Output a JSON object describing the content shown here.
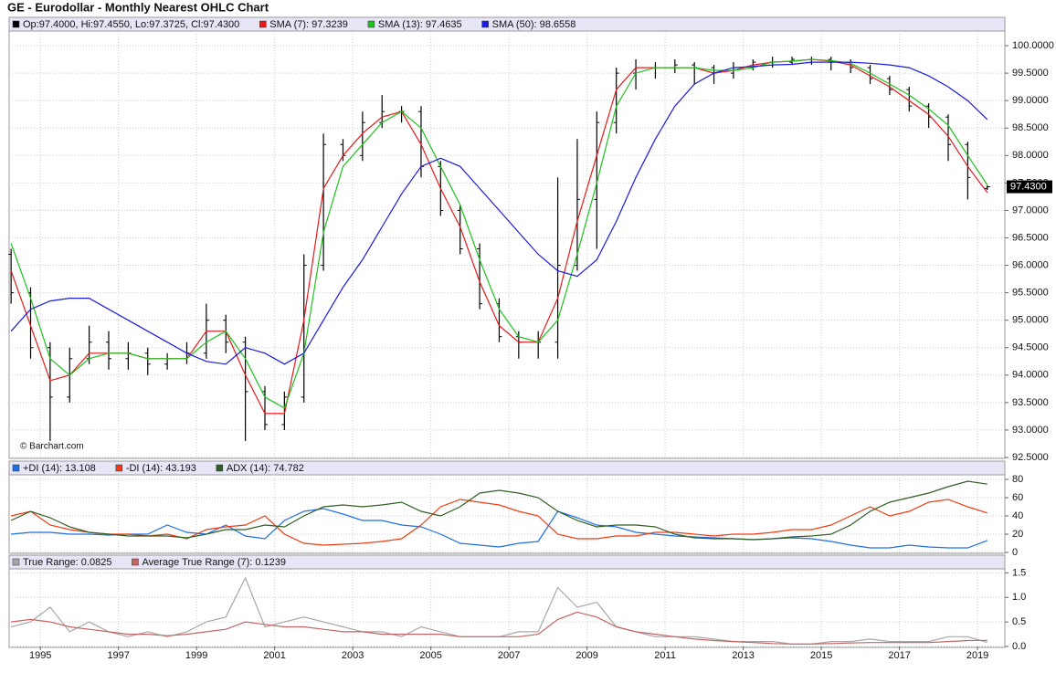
{
  "chart_data": [
    {
      "type": "ohlc",
      "title": "GE - Eurodollar - Monthly Nearest OHLC Chart",
      "credit": "© Barchart.com",
      "name": "Op:97.4000, Hi:97.4550, Lo:97.3725, Cl:97.4300",
      "color": "#000000",
      "last_label": "97.4300",
      "x": [
        1994.25,
        1994.75,
        1995.25,
        1995.75,
        1996.25,
        1996.75,
        1997.25,
        1997.75,
        1998.25,
        1998.75,
        1999.25,
        1999.75,
        2000.25,
        2000.75,
        2001.25,
        2001.75,
        2002.25,
        2002.75,
        2003.25,
        2003.75,
        2004.25,
        2004.75,
        2005.25,
        2005.75,
        2006.25,
        2006.75,
        2007.25,
        2007.75,
        2008.25,
        2008.75,
        2009.25,
        2009.75,
        2010.25,
        2010.75,
        2011.25,
        2011.75,
        2012.25,
        2012.75,
        2013.25,
        2013.75,
        2014.25,
        2014.75,
        2015.25,
        2015.75,
        2016.25,
        2016.75,
        2017.25,
        2017.75,
        2018.25,
        2018.75,
        2019.25
      ],
      "open": [
        96.2,
        95.5,
        94.5,
        93.6,
        94.3,
        94.6,
        94.3,
        94.4,
        94.2,
        94.3,
        94.4,
        95.0,
        94.6,
        93.7,
        93.1,
        93.6,
        96.0,
        98.2,
        98.0,
        98.6,
        98.8,
        98.8,
        97.8,
        97.0,
        96.3,
        95.3,
        94.7,
        94.6,
        94.6,
        96.0,
        97.2,
        98.6,
        99.5,
        99.6,
        99.6,
        99.65,
        99.6,
        99.5,
        99.6,
        99.7,
        99.7,
        99.75,
        99.75,
        99.7,
        99.6,
        99.4,
        99.2,
        98.9,
        98.7,
        98.2,
        97.4
      ],
      "high": [
        96.3,
        95.6,
        94.6,
        94.5,
        94.9,
        94.8,
        94.6,
        94.5,
        94.4,
        94.6,
        95.3,
        95.1,
        94.7,
        93.8,
        93.7,
        96.2,
        98.4,
        98.3,
        98.8,
        99.1,
        98.9,
        98.9,
        97.9,
        97.1,
        96.4,
        95.4,
        94.8,
        94.8,
        97.6,
        98.3,
        98.8,
        99.6,
        99.75,
        99.7,
        99.75,
        99.7,
        99.65,
        99.7,
        99.75,
        99.8,
        99.8,
        99.8,
        99.8,
        99.75,
        99.65,
        99.45,
        99.25,
        98.95,
        98.75,
        98.25,
        97.455
      ],
      "low": [
        95.3,
        94.3,
        92.8,
        93.5,
        94.2,
        94.1,
        94.1,
        94.0,
        94.1,
        94.2,
        94.3,
        94.4,
        92.8,
        93.0,
        93.0,
        93.5,
        95.9,
        97.9,
        97.9,
        98.5,
        98.6,
        97.6,
        96.9,
        96.2,
        95.2,
        94.6,
        94.3,
        94.3,
        94.3,
        95.9,
        96.3,
        98.4,
        99.2,
        99.4,
        99.5,
        99.3,
        99.3,
        99.4,
        99.55,
        99.6,
        99.65,
        99.65,
        99.55,
        99.5,
        99.3,
        99.1,
        98.8,
        98.5,
        97.9,
        97.2,
        97.3725
      ],
      "close": [
        95.5,
        94.5,
        93.6,
        94.3,
        94.6,
        94.3,
        94.4,
        94.2,
        94.3,
        94.4,
        95.0,
        94.6,
        93.7,
        93.1,
        93.6,
        96.0,
        98.2,
        98.0,
        98.6,
        98.8,
        98.8,
        97.8,
        97.0,
        96.3,
        95.3,
        94.7,
        94.6,
        94.6,
        96.0,
        97.2,
        98.6,
        99.5,
        99.6,
        99.6,
        99.65,
        99.6,
        99.5,
        99.6,
        99.7,
        99.7,
        99.75,
        99.75,
        99.7,
        99.6,
        99.4,
        99.2,
        98.9,
        98.7,
        98.2,
        97.6,
        97.43
      ],
      "series": [
        {
          "name": "SMA (7): 97.3239",
          "color": "#e8191b",
          "values": [
            95.9,
            94.9,
            93.9,
            94.0,
            94.4,
            94.4,
            94.4,
            94.3,
            94.3,
            94.3,
            94.8,
            94.8,
            94.0,
            93.3,
            93.3,
            95.0,
            97.4,
            98.0,
            98.4,
            98.7,
            98.8,
            98.2,
            97.4,
            96.7,
            95.7,
            94.9,
            94.6,
            94.6,
            95.4,
            96.8,
            98.0,
            99.2,
            99.6,
            99.6,
            99.6,
            99.6,
            99.5,
            99.55,
            99.65,
            99.7,
            99.72,
            99.75,
            99.72,
            99.65,
            99.45,
            99.25,
            99.0,
            98.75,
            98.35,
            97.8,
            97.3239
          ]
        },
        {
          "name": "SMA (13): 97.4635",
          "color": "#1cc31c",
          "values": [
            96.4,
            95.4,
            94.3,
            94.0,
            94.3,
            94.4,
            94.4,
            94.3,
            94.3,
            94.3,
            94.6,
            94.8,
            94.3,
            93.6,
            93.4,
            94.4,
            96.6,
            97.8,
            98.2,
            98.6,
            98.8,
            98.5,
            97.8,
            97.1,
            96.1,
            95.2,
            94.7,
            94.6,
            95.0,
            96.2,
            97.5,
            98.9,
            99.5,
            99.6,
            99.6,
            99.6,
            99.55,
            99.55,
            99.6,
            99.7,
            99.72,
            99.75,
            99.73,
            99.68,
            99.5,
            99.3,
            99.1,
            98.85,
            98.55,
            98.0,
            97.4635
          ]
        },
        {
          "name": "SMA (50): 98.6558",
          "color": "#1a1ae0",
          "values": [
            94.8,
            95.2,
            95.35,
            95.4,
            95.4,
            95.2,
            95.0,
            94.8,
            94.6,
            94.4,
            94.25,
            94.2,
            94.5,
            94.4,
            94.2,
            94.4,
            95.0,
            95.6,
            96.1,
            96.7,
            97.3,
            97.8,
            97.95,
            97.8,
            97.4,
            97.0,
            96.6,
            96.2,
            95.9,
            95.8,
            96.1,
            96.8,
            97.6,
            98.3,
            98.9,
            99.3,
            99.5,
            99.6,
            99.62,
            99.65,
            99.66,
            99.7,
            99.7,
            99.7,
            99.68,
            99.65,
            99.6,
            99.45,
            99.25,
            99.0,
            98.6558
          ]
        }
      ],
      "xlim": [
        1994.2,
        2019.7
      ],
      "ylim": [
        92.5,
        100.25
      ],
      "yticks": [
        {
          "value": 92.5,
          "label": "92.5000"
        },
        {
          "value": 93,
          "label": "93.0000"
        },
        {
          "value": 93.5,
          "label": "93.5000"
        },
        {
          "value": 94,
          "label": "94.0000"
        },
        {
          "value": 94.5,
          "label": "94.5000"
        },
        {
          "value": 95,
          "label": "95.0000"
        },
        {
          "value": 95.5,
          "label": "95.5000"
        },
        {
          "value": 96,
          "label": "96.0000"
        },
        {
          "value": 96.5,
          "label": "96.5000"
        },
        {
          "value": 97,
          "label": "97.0000"
        },
        {
          "value": 97.5,
          "label": "97.5000"
        },
        {
          "value": 98,
          "label": "98.0000"
        },
        {
          "value": 98.5,
          "label": "98.5000"
        },
        {
          "value": 99,
          "label": "99.0000"
        },
        {
          "value": 99.5,
          "label": "99.5000"
        },
        {
          "value": 100,
          "label": "100.0000"
        }
      ],
      "grid": true
    },
    {
      "type": "line",
      "x": [
        1994.25,
        1994.75,
        1995.25,
        1995.75,
        1996.25,
        1996.75,
        1997.25,
        1997.75,
        1998.25,
        1998.75,
        1999.25,
        1999.75,
        2000.25,
        2000.75,
        2001.25,
        2001.75,
        2002.25,
        2002.75,
        2003.25,
        2003.75,
        2004.25,
        2004.75,
        2005.25,
        2005.75,
        2006.25,
        2006.75,
        2007.25,
        2007.75,
        2008.25,
        2008.75,
        2009.25,
        2009.75,
        2010.25,
        2010.75,
        2011.25,
        2011.75,
        2012.25,
        2012.75,
        2013.25,
        2013.75,
        2014.25,
        2014.75,
        2015.25,
        2015.75,
        2016.25,
        2016.75,
        2017.25,
        2017.75,
        2018.25,
        2018.75,
        2019.25
      ],
      "series": [
        {
          "name": "+DI (14): 13.108",
          "color": "#1f6fe6",
          "values": [
            20,
            22,
            22,
            20,
            20,
            19,
            20,
            20,
            30,
            22,
            20,
            30,
            18,
            15,
            35,
            45,
            48,
            42,
            35,
            35,
            30,
            28,
            20,
            10,
            8,
            6,
            10,
            12,
            45,
            38,
            30,
            28,
            22,
            20,
            18,
            17,
            16,
            15,
            14,
            15,
            16,
            15,
            12,
            8,
            5,
            5,
            8,
            6,
            5,
            5,
            13.108
          ]
        },
        {
          "name": "-DI (14): 43.193",
          "color": "#f03c14",
          "values": [
            40,
            45,
            30,
            25,
            22,
            20,
            20,
            18,
            20,
            15,
            25,
            28,
            30,
            40,
            20,
            10,
            8,
            9,
            10,
            12,
            15,
            30,
            50,
            58,
            55,
            52,
            45,
            40,
            20,
            15,
            15,
            18,
            18,
            22,
            22,
            20,
            18,
            20,
            20,
            22,
            25,
            25,
            30,
            40,
            50,
            40,
            45,
            55,
            58,
            50,
            43.193
          ]
        },
        {
          "name": "ADX (14): 74.782",
          "color": "#2f5f23",
          "values": [
            35,
            45,
            38,
            28,
            22,
            20,
            18,
            18,
            18,
            16,
            20,
            25,
            25,
            30,
            28,
            40,
            50,
            52,
            50,
            52,
            55,
            45,
            40,
            50,
            65,
            68,
            65,
            60,
            45,
            35,
            28,
            30,
            30,
            28,
            20,
            16,
            15,
            15,
            14,
            15,
            17,
            18,
            20,
            30,
            45,
            55,
            60,
            65,
            72,
            78,
            74.782
          ]
        }
      ],
      "xlim": [
        1994.2,
        2019.7
      ],
      "ylim": [
        0,
        85
      ],
      "yticks": [
        0,
        20,
        40,
        60,
        80
      ],
      "grid": true
    },
    {
      "type": "line",
      "x": [
        1994.25,
        1994.75,
        1995.25,
        1995.75,
        1996.25,
        1996.75,
        1997.25,
        1997.75,
        1998.25,
        1998.75,
        1999.25,
        1999.75,
        2000.25,
        2000.75,
        2001.25,
        2001.75,
        2002.25,
        2002.75,
        2003.25,
        2003.75,
        2004.25,
        2004.75,
        2005.25,
        2005.75,
        2006.25,
        2006.75,
        2007.25,
        2007.75,
        2008.25,
        2008.75,
        2009.25,
        2009.75,
        2010.25,
        2010.75,
        2011.25,
        2011.75,
        2012.25,
        2012.75,
        2013.25,
        2013.75,
        2014.25,
        2014.75,
        2015.25,
        2015.75,
        2016.25,
        2016.75,
        2017.25,
        2017.75,
        2018.25,
        2018.75,
        2019.25
      ],
      "series": [
        {
          "name": "True Range: 0.0825",
          "color": "#a8a8a8",
          "values": [
            0.4,
            0.5,
            0.8,
            0.3,
            0.5,
            0.3,
            0.2,
            0.3,
            0.2,
            0.3,
            0.5,
            0.6,
            1.4,
            0.4,
            0.5,
            0.6,
            0.5,
            0.4,
            0.3,
            0.3,
            0.2,
            0.4,
            0.3,
            0.2,
            0.2,
            0.2,
            0.3,
            0.3,
            1.2,
            0.8,
            0.9,
            0.4,
            0.3,
            0.2,
            0.2,
            0.2,
            0.15,
            0.1,
            0.1,
            0.1,
            0.05,
            0.05,
            0.1,
            0.1,
            0.15,
            0.1,
            0.1,
            0.1,
            0.2,
            0.2,
            0.0825
          ]
        },
        {
          "name": "Average True Range (7): 0.1239",
          "color": "#c46464",
          "values": [
            0.5,
            0.55,
            0.5,
            0.4,
            0.35,
            0.3,
            0.25,
            0.25,
            0.22,
            0.25,
            0.3,
            0.35,
            0.5,
            0.45,
            0.4,
            0.4,
            0.35,
            0.3,
            0.3,
            0.25,
            0.25,
            0.25,
            0.25,
            0.2,
            0.2,
            0.2,
            0.2,
            0.25,
            0.55,
            0.7,
            0.6,
            0.4,
            0.3,
            0.25,
            0.2,
            0.15,
            0.12,
            0.1,
            0.08,
            0.06,
            0.05,
            0.05,
            0.06,
            0.07,
            0.08,
            0.08,
            0.08,
            0.08,
            0.1,
            0.12,
            0.1239
          ]
        }
      ],
      "xlim": [
        1994.2,
        2019.7
      ],
      "ylim": [
        0,
        1.6
      ],
      "yticks": [
        {
          "value": 0,
          "label": "0.0"
        },
        {
          "value": 0.5,
          "label": "0.5"
        },
        {
          "value": 1,
          "label": "1.0"
        },
        {
          "value": 1.5,
          "label": "1.5"
        }
      ],
      "xticks": [
        1995,
        1997,
        1999,
        2001,
        2003,
        2005,
        2007,
        2009,
        2011,
        2013,
        2015,
        2017,
        2019
      ],
      "grid": true
    }
  ]
}
